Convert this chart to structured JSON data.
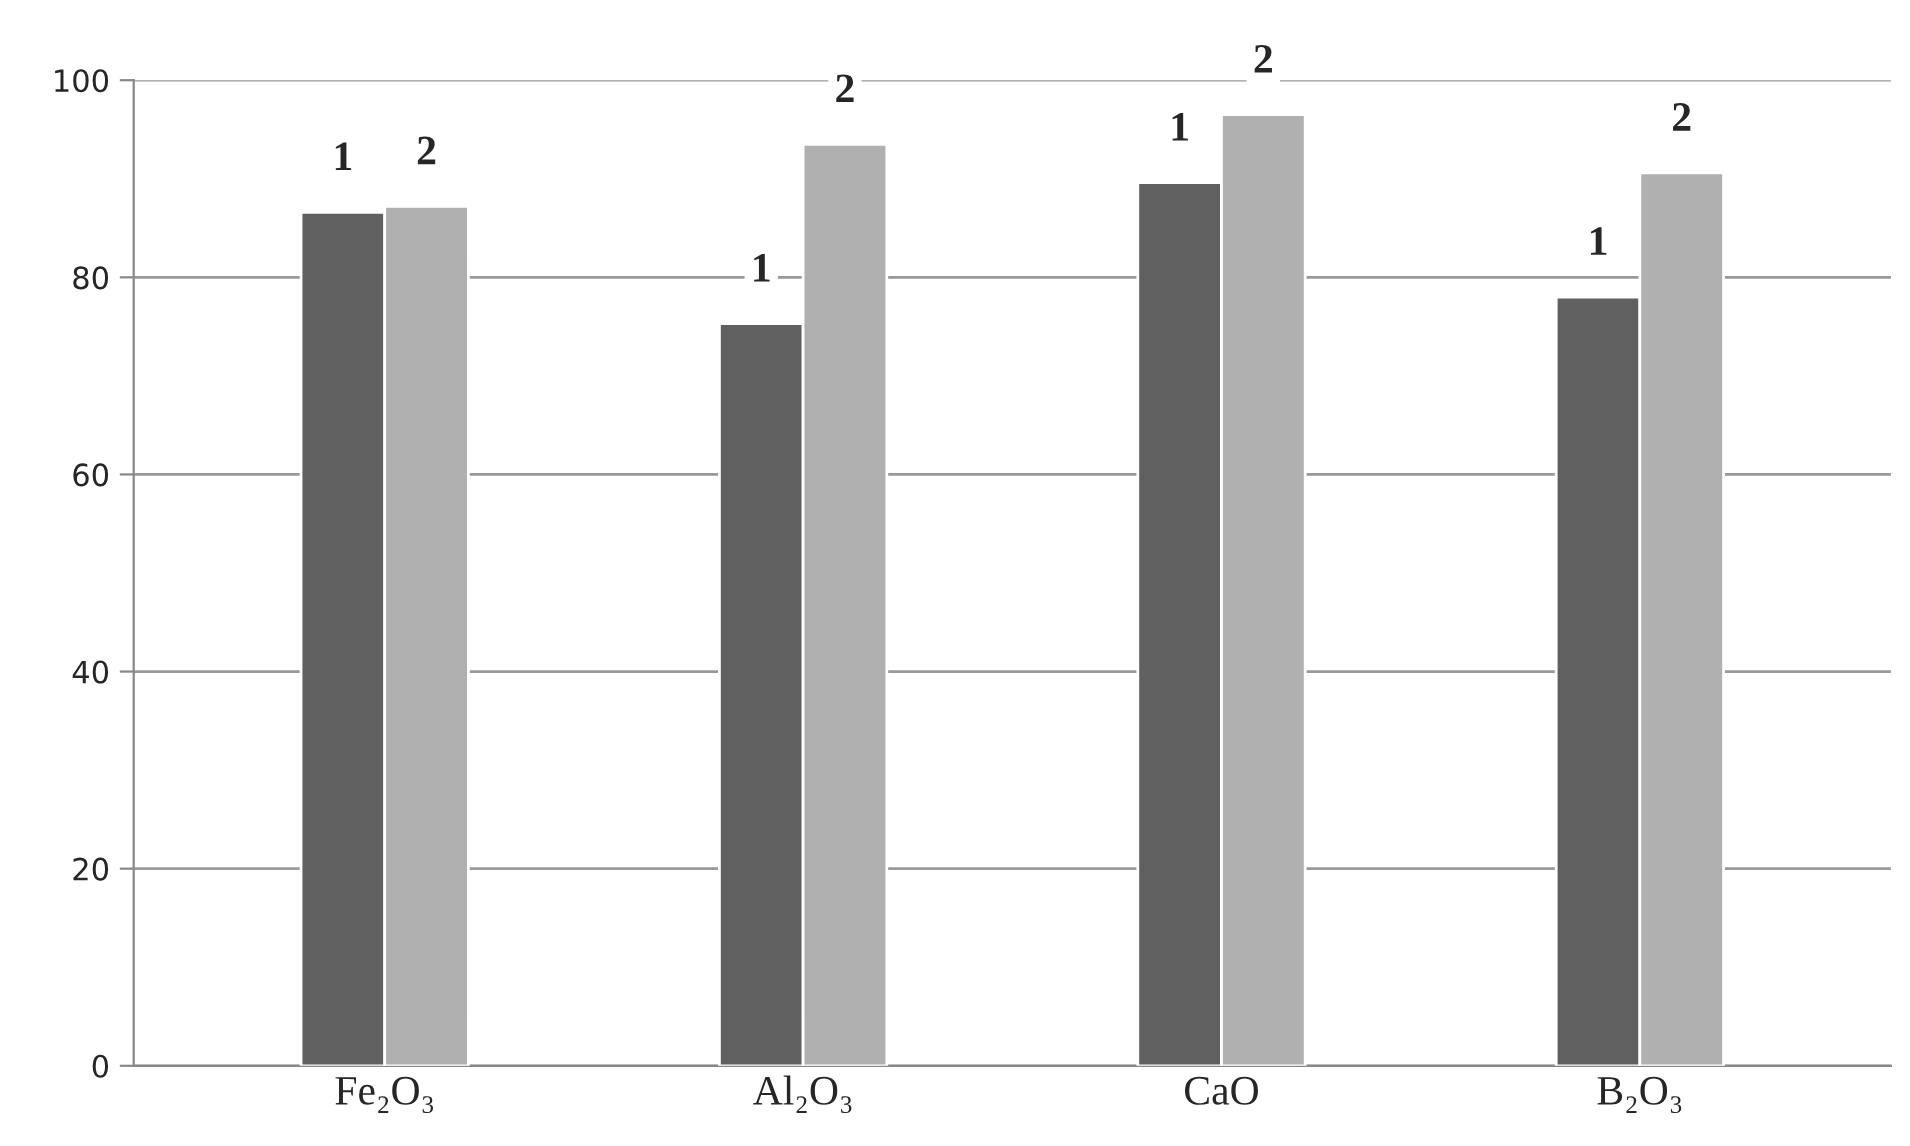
{
  "chart_data": {
    "type": "bar",
    "categories": [
      "Fe₂O₃",
      "Al₂O₃",
      "CaO",
      "B₂O₃"
    ],
    "series": [
      {
        "name": "1",
        "color": "#606060",
        "values": [
          86.6,
          75.3,
          89.6,
          78.0
        ]
      },
      {
        "name": "2",
        "color": "#b0b0b0",
        "values": [
          87.2,
          93.5,
          96.5,
          90.6
        ]
      }
    ],
    "ylim": [
      0,
      100
    ],
    "yticks": [
      0,
      20,
      40,
      60,
      80,
      100
    ],
    "grid": "y",
    "legend": false
  }
}
